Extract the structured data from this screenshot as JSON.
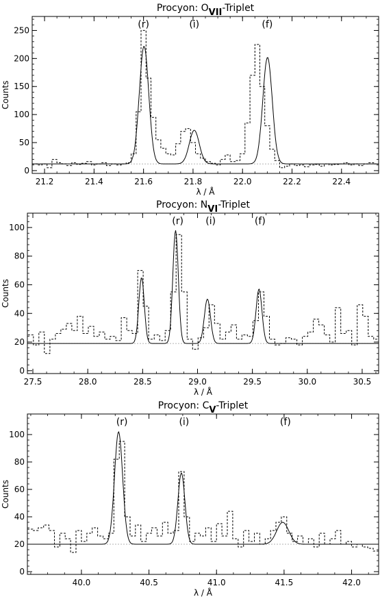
{
  "chart_data": [
    {
      "type": "line",
      "title": "Procyon: O",
      "title_sub": "VII",
      "title_suffix": "-Triplet",
      "xlabel": "λ / Å",
      "ylabel": "Counts",
      "xlim": [
        21.15,
        22.55
      ],
      "ylim": [
        -5,
        275
      ],
      "xticks": [
        "21.2",
        "21.4",
        "21.6",
        "21.8",
        "22.0",
        "22.2",
        "22.4"
      ],
      "xtick_values": [
        21.2,
        21.4,
        21.6,
        21.8,
        22.0,
        22.2,
        22.4
      ],
      "yticks": [
        "0",
        "50",
        "100",
        "150",
        "200",
        "250"
      ],
      "ytick_values": [
        0,
        50,
        100,
        150,
        200,
        250
      ],
      "baseline": 12,
      "annotations": [
        {
          "text": "(r)",
          "x": 21.6
        },
        {
          "text": "(i)",
          "x": 21.805
        },
        {
          "text": "(f)",
          "x": 22.1
        }
      ],
      "series": [
        {
          "style": "dashed-histogram",
          "x": [
            21.16,
            21.18,
            21.2,
            21.22,
            21.24,
            21.26,
            21.28,
            21.3,
            21.32,
            21.34,
            21.36,
            21.38,
            21.4,
            21.42,
            21.44,
            21.46,
            21.48,
            21.5,
            21.52,
            21.54,
            21.56,
            21.58,
            21.6,
            21.62,
            21.64,
            21.66,
            21.68,
            21.7,
            21.72,
            21.74,
            21.76,
            21.78,
            21.8,
            21.82,
            21.84,
            21.86,
            21.88,
            21.9,
            21.92,
            21.94,
            21.96,
            21.98,
            22.0,
            22.02,
            22.04,
            22.06,
            22.08,
            22.1,
            22.12,
            22.14,
            22.16,
            22.18,
            22.2,
            22.22,
            22.24,
            22.26,
            22.28,
            22.3,
            22.32,
            22.34,
            22.36,
            22.38,
            22.4,
            22.42,
            22.44,
            22.46,
            22.48,
            22.5,
            22.52,
            22.54
          ],
          "y": [
            12,
            10,
            12,
            5,
            20,
            14,
            12,
            9,
            14,
            11,
            13,
            16,
            10,
            12,
            14,
            9,
            12,
            10,
            12,
            14,
            30,
            105,
            250,
            165,
            95,
            55,
            40,
            30,
            28,
            48,
            70,
            75,
            50,
            30,
            22,
            16,
            13,
            10,
            20,
            28,
            16,
            18,
            30,
            85,
            170,
            225,
            150,
            80,
            38,
            18,
            5,
            8,
            12,
            9,
            10,
            7,
            10,
            11,
            8,
            12,
            10,
            11,
            12,
            14,
            10,
            12,
            9,
            12,
            14,
            12
          ]
        },
        {
          "style": "solid-model",
          "kind": "gaussian-sum",
          "baseline": 12,
          "components": [
            {
              "center": 21.602,
              "amplitude": 210,
              "sigma": 0.019
            },
            {
              "center": 21.805,
              "amplitude": 60,
              "sigma": 0.02
            },
            {
              "center": 22.101,
              "amplitude": 190,
              "sigma": 0.019
            }
          ]
        }
      ]
    },
    {
      "type": "line",
      "title": "Procyon: N",
      "title_sub": "VI",
      "title_suffix": "-Triplet",
      "xlabel": "λ / Å",
      "ylabel": "Counts",
      "xlim": [
        27.45,
        30.65
      ],
      "ylim": [
        -2,
        110
      ],
      "xticks": [
        "27.5",
        "28.0",
        "28.5",
        "29.0",
        "29.5",
        "30.0",
        "30.5"
      ],
      "xtick_values": [
        27.5,
        28.0,
        28.5,
        29.0,
        29.5,
        30.0,
        30.5
      ],
      "yticks": [
        "0",
        "20",
        "40",
        "60",
        "80",
        "100"
      ],
      "ytick_values": [
        0,
        20,
        40,
        60,
        80,
        100
      ],
      "baseline": 19,
      "annotations": [
        {
          "text": "(r)",
          "x": 28.82
        },
        {
          "text": "(i)",
          "x": 29.12
        },
        {
          "text": "(f)",
          "x": 29.57
        }
      ],
      "series": [
        {
          "style": "dashed-histogram",
          "x": [
            27.48,
            27.53,
            27.58,
            27.63,
            27.68,
            27.73,
            27.78,
            27.83,
            27.88,
            27.93,
            27.98,
            28.03,
            28.08,
            28.13,
            28.18,
            28.23,
            28.28,
            28.33,
            28.38,
            28.43,
            28.48,
            28.53,
            28.58,
            28.63,
            28.68,
            28.73,
            28.78,
            28.83,
            28.88,
            28.93,
            28.98,
            29.03,
            29.08,
            29.13,
            29.18,
            29.23,
            29.28,
            29.33,
            29.38,
            29.43,
            29.48,
            29.53,
            29.58,
            29.63,
            29.68,
            29.73,
            29.78,
            29.83,
            29.88,
            29.93,
            29.98,
            30.03,
            30.08,
            30.13,
            30.18,
            30.23,
            30.28,
            30.33,
            30.38,
            30.43,
            30.48,
            30.53,
            30.58,
            30.63
          ],
          "y": [
            25,
            18,
            27,
            12,
            22,
            26,
            29,
            33,
            28,
            38,
            26,
            31,
            24,
            27,
            22,
            24,
            21,
            37,
            28,
            26,
            70,
            45,
            22,
            25,
            21,
            28,
            55,
            95,
            55,
            22,
            15,
            23,
            30,
            46,
            33,
            22,
            27,
            32,
            22,
            25,
            24,
            35,
            55,
            38,
            22,
            18,
            19,
            23,
            22,
            18,
            24,
            27,
            36,
            32,
            25,
            20,
            44,
            26,
            28,
            18,
            46,
            38,
            24,
            22
          ]
        },
        {
          "style": "solid-model",
          "kind": "gaussian-sum",
          "baseline": 19,
          "components": [
            {
              "center": 28.49,
              "amplitude": 46,
              "sigma": 0.025
            },
            {
              "center": 28.8,
              "amplitude": 79,
              "sigma": 0.025
            },
            {
              "center": 29.09,
              "amplitude": 31,
              "sigma": 0.028
            },
            {
              "center": 29.56,
              "amplitude": 38,
              "sigma": 0.027
            }
          ]
        }
      ]
    },
    {
      "type": "line",
      "title": "Procyon: C",
      "title_sub": "V",
      "title_suffix": "-Triplet",
      "xlabel": "λ / Å",
      "ylabel": "Counts",
      "xlim": [
        39.6,
        42.2
      ],
      "ylim": [
        -2,
        115
      ],
      "xticks": [
        "40.0",
        "40.5",
        "41.0",
        "41.5",
        "42.0"
      ],
      "xtick_values": [
        40.0,
        40.5,
        41.0,
        41.5,
        42.0
      ],
      "yticks": [
        "0",
        "20",
        "40",
        "60",
        "80",
        "100"
      ],
      "ytick_values": [
        0,
        20,
        40,
        60,
        80,
        100
      ],
      "baseline": 20,
      "annotations": [
        {
          "text": "(r)",
          "x": 40.3
        },
        {
          "text": "(i)",
          "x": 40.76
        },
        {
          "text": "(f)",
          "x": 41.51
        }
      ],
      "series": [
        {
          "style": "dashed-histogram",
          "x": [
            39.62,
            39.66,
            39.7,
            39.74,
            39.78,
            39.82,
            39.86,
            39.9,
            39.94,
            39.98,
            40.02,
            40.06,
            40.1,
            40.14,
            40.18,
            40.22,
            40.26,
            40.3,
            40.34,
            40.38,
            40.42,
            40.46,
            40.5,
            40.54,
            40.58,
            40.62,
            40.66,
            40.7,
            40.74,
            40.78,
            40.82,
            40.86,
            40.9,
            40.94,
            40.98,
            41.02,
            41.06,
            41.1,
            41.14,
            41.18,
            41.22,
            41.26,
            41.3,
            41.34,
            41.38,
            41.42,
            41.46,
            41.5,
            41.54,
            41.58,
            41.62,
            41.66,
            41.7,
            41.74,
            41.78,
            41.82,
            41.86,
            41.9,
            41.94,
            41.98,
            42.02,
            42.06,
            42.1,
            42.14,
            42.18
          ],
          "y": [
            31,
            30,
            32,
            34,
            30,
            18,
            28,
            24,
            14,
            30,
            22,
            28,
            32,
            26,
            24,
            28,
            82,
            95,
            40,
            26,
            34,
            22,
            28,
            32,
            26,
            36,
            28,
            30,
            73,
            40,
            22,
            28,
            26,
            32,
            22,
            35,
            26,
            44,
            24,
            18,
            30,
            22,
            28,
            20,
            24,
            30,
            36,
            40,
            28,
            22,
            26,
            20,
            24,
            18,
            28,
            20,
            24,
            30,
            20,
            22,
            18,
            20,
            18,
            17,
            15
          ]
        },
        {
          "style": "solid-model",
          "kind": "gaussian-sum",
          "baseline": 20,
          "components": [
            {
              "center": 40.275,
              "amplitude": 82,
              "sigma": 0.03
            },
            {
              "center": 40.74,
              "amplitude": 52,
              "sigma": 0.026
            },
            {
              "center": 41.49,
              "amplitude": 16,
              "sigma": 0.045
            }
          ]
        }
      ]
    }
  ]
}
